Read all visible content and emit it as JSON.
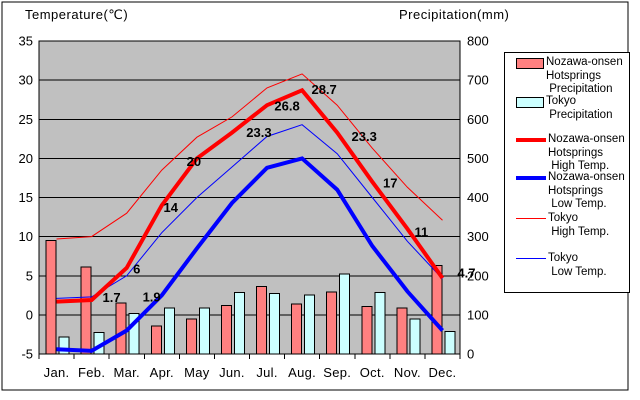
{
  "titles": {
    "left_axis": "Temperature(℃)",
    "right_axis": "Precipitation(mm)"
  },
  "chart_data": {
    "type": "combo-bar-line",
    "categories": [
      "Jan.",
      "Feb.",
      "Mar.",
      "Apr.",
      "May",
      "Jun.",
      "Jul.",
      "Aug.",
      "Sep.",
      "Oct.",
      "Nov.",
      "Dec."
    ],
    "left_axis": {
      "title": "Temperature(℃)",
      "min": -5,
      "max": 35,
      "step": 5
    },
    "right_axis": {
      "title": "Precipitation(mm)",
      "min": 0,
      "max": 800,
      "step": 100
    },
    "plot_background": "#C0C0C0",
    "grid": "horizontal",
    "legend_position": "right",
    "bar_series": [
      {
        "name": "Nozawa-onsen Hotsprings Precipitation",
        "axis": "right",
        "color": "#FF8080",
        "values": [
          290,
          222,
          130,
          72,
          90,
          124,
          172,
          128,
          159,
          121,
          118,
          226
        ]
      },
      {
        "name": "Tokyo Precipitation",
        "axis": "right",
        "color": "#CCFFFF",
        "values": [
          43,
          55,
          104,
          117,
          118,
          157,
          155,
          151,
          204,
          157,
          89,
          57
        ]
      }
    ],
    "line_series": [
      {
        "name": "Tokyo High Temp.",
        "axis": "left",
        "color": "#FF0000",
        "thickness": 1,
        "values": [
          9.7,
          10,
          13,
          18.5,
          22.7,
          25.3,
          29,
          30.8,
          26.8,
          21.3,
          16.3,
          12.1
        ]
      },
      {
        "name": "Tokyo Low Temp.",
        "axis": "left",
        "color": "#0000FF",
        "thickness": 1,
        "values": [
          2.1,
          2.3,
          5,
          10.5,
          15,
          18.9,
          22.8,
          24.3,
          20.6,
          15,
          9.4,
          4.6
        ]
      },
      {
        "name": "Nozawa-onsen Hotsprings Low Temp.",
        "axis": "left",
        "color": "#0000FF",
        "thickness": 4,
        "values": [
          -4.4,
          -4.6,
          -2,
          2.5,
          8.5,
          14.3,
          18.8,
          20,
          16,
          8.8,
          3,
          -2
        ]
      },
      {
        "name": "Nozawa-onsen Hotsprings High Temp.",
        "axis": "left",
        "color": "#FF0000",
        "thickness": 4,
        "values": [
          1.7,
          1.9,
          6,
          14,
          20,
          23.3,
          26.8,
          28.7,
          23.3,
          17,
          11,
          4.7
        ],
        "data_labels": [
          "1.7",
          "1.9",
          "6",
          "14",
          "20",
          "23.3",
          "26.8",
          "28.7",
          "23.3",
          "17",
          "11",
          "4.7"
        ]
      }
    ]
  },
  "legend": {
    "items": [
      {
        "label": "Nozawa-onsen\nHotsprings\n Precipitation",
        "swatch": "bar",
        "color": "#FF8080"
      },
      {
        "label": "Tokyo\n Precipitation",
        "swatch": "bar",
        "color": "#CCFFFF"
      },
      {
        "label": "Nozawa-onsen\nHotsprings\n High Temp.",
        "swatch": "thick-line",
        "color": "#FF0000"
      },
      {
        "label": "Nozawa-onsen\nHotsprings\n Low Temp.",
        "swatch": "thick-line",
        "color": "#0000FF"
      },
      {
        "label": "Tokyo\n High Temp.",
        "swatch": "thin-line",
        "color": "#FF0000"
      },
      {
        "label": "Tokyo\n Low Temp.",
        "swatch": "thin-line",
        "color": "#0000FF"
      }
    ]
  }
}
